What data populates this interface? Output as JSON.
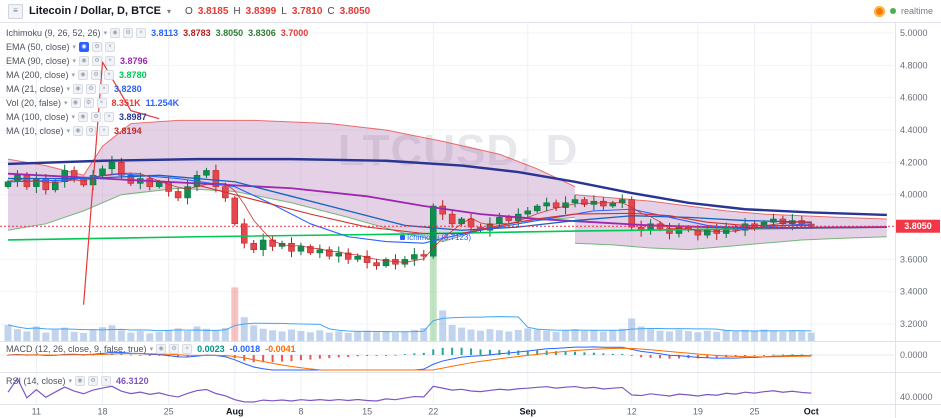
{
  "header": {
    "title": "Litecoin / Dollar, D, BTCE",
    "ohlc": {
      "o_label": "O",
      "o": "3.8185",
      "h_label": "H",
      "h": "3.8399",
      "l_label": "L",
      "l": "3.7810",
      "c_label": "C",
      "c": "3.8050"
    },
    "realtime": "realtime"
  },
  "colors": {
    "ohlc_value": "#e53935",
    "accent_blue": "#2962ff",
    "last_price_tag": "#f23645",
    "cloud_fill": "rgba(160,90,160,0.28)",
    "up_fill": "#0c8f4e",
    "up_border": "#07713c",
    "down_fill": "#e4484e",
    "down_border": "#b71c1c"
  },
  "legend": {
    "rows": [
      {
        "name": "Ichimoku (9, 26, 52, 26)",
        "values": [
          {
            "t": "3.8113",
            "c": "#2962ff"
          },
          {
            "t": "3.8783",
            "c": "#b71c1c"
          },
          {
            "t": "3.8050",
            "c": "#2e7d32"
          },
          {
            "t": "3.8306",
            "c": "#2e7d32"
          },
          {
            "t": "3.7000",
            "c": "#e53935"
          }
        ]
      },
      {
        "name": "EMA (50, close)",
        "highlight_icon": true,
        "values": []
      },
      {
        "name": "EMA (90, close)",
        "values": [
          {
            "t": "3.8796",
            "c": "#9c27b0"
          }
        ]
      },
      {
        "name": "MA (200, close)",
        "values": [
          {
            "t": "3.8780",
            "c": "#00c853"
          }
        ]
      },
      {
        "name": "MA (21, close)",
        "values": [
          {
            "t": "3.8280",
            "c": "#2962ff"
          }
        ]
      },
      {
        "name": "Vol (20, false)",
        "values": [
          {
            "t": "8.351K",
            "c": "#e53935"
          },
          {
            "t": "11.254K",
            "c": "#2962ff"
          }
        ]
      },
      {
        "name": "MA (100, close)",
        "values": [
          {
            "t": "3.8987",
            "c": "#283593"
          }
        ]
      },
      {
        "name": "MA (10, close)",
        "values": [
          {
            "t": "3.8194",
            "c": "#c62828"
          }
        ]
      }
    ]
  },
  "panes": {
    "macd": {
      "name": "MACD (12, 26, close, 9, false, true)",
      "axis_label": "0.0000",
      "values": [
        {
          "t": "0.0023",
          "c": "#009688"
        },
        {
          "t": "-0.0018",
          "c": "#2962ff"
        },
        {
          "t": "-0.0041",
          "c": "#ff6d00"
        }
      ]
    },
    "rsi": {
      "name": "RSI (14, close)",
      "axis_label": "40.0000",
      "values": [
        {
          "t": "46.3120",
          "c": "#7e57c2"
        }
      ]
    }
  },
  "price_axis": {
    "labels": [
      "5.0000",
      "4.8000",
      "4.6000",
      "4.4000",
      "4.2000",
      "4.0000",
      "3.8000",
      "3.6000",
      "3.4000",
      "3.2000"
    ],
    "last_price": "3.8050"
  },
  "time_axis": {
    "labels": [
      {
        "t": "11",
        "i": 3
      },
      {
        "t": "18",
        "i": 10
      },
      {
        "t": "25",
        "i": 17
      },
      {
        "t": "Aug",
        "i": 24,
        "bold": true
      },
      {
        "t": "8",
        "i": 31
      },
      {
        "t": "15",
        "i": 38
      },
      {
        "t": "22",
        "i": 45
      },
      {
        "t": "Sep",
        "i": 55,
        "bold": true
      },
      {
        "t": "12",
        "i": 66
      },
      {
        "t": "19",
        "i": 73
      },
      {
        "t": "25",
        "i": 79
      },
      {
        "t": "Oct",
        "i": 85,
        "bold": true
      }
    ]
  },
  "watermark": "LTCUSD, D",
  "chart_label": "Ichimoku (3.7123)",
  "chart_data": {
    "type": "candlestick",
    "symbol": "LTCUSD",
    "interval": "D",
    "exchange": "BTCE",
    "price_range": [
      3.08,
      5.06
    ],
    "last_price": 3.805,
    "open_first": 4.05,
    "closes": [
      4.08,
      4.12,
      4.05,
      4.1,
      4.03,
      4.08,
      4.15,
      4.1,
      4.06,
      4.12,
      4.16,
      4.2,
      4.12,
      4.07,
      4.1,
      4.05,
      4.08,
      4.02,
      3.98,
      4.05,
      4.12,
      4.15,
      4.05,
      3.98,
      3.82,
      3.7,
      3.66,
      3.72,
      3.68,
      3.7,
      3.65,
      3.68,
      3.64,
      3.66,
      3.62,
      3.64,
      3.6,
      3.62,
      3.58,
      3.56,
      3.6,
      3.57,
      3.6,
      3.63,
      3.62,
      3.93,
      3.88,
      3.82,
      3.85,
      3.8,
      3.78,
      3.82,
      3.86,
      3.84,
      3.88,
      3.9,
      3.93,
      3.95,
      3.92,
      3.95,
      3.97,
      3.94,
      3.96,
      3.93,
      3.95,
      3.97,
      3.8,
      3.78,
      3.82,
      3.79,
      3.76,
      3.8,
      3.78,
      3.75,
      3.78,
      3.76,
      3.8,
      3.78,
      3.82,
      3.8,
      3.83,
      3.85,
      3.82,
      3.84,
      3.8185,
      3.805
    ],
    "volumes": [
      4.2,
      3.1,
      2.5,
      3.8,
      2.2,
      2.9,
      3.5,
      2.4,
      2.1,
      3.0,
      3.6,
      4.1,
      2.8,
      2.2,
      2.6,
      2.0,
      2.4,
      2.9,
      3.3,
      2.6,
      3.8,
      3.2,
      2.7,
      3.4,
      14.0,
      6.2,
      4.1,
      3.2,
      2.8,
      2.5,
      3.0,
      2.6,
      2.3,
      2.8,
      2.2,
      2.5,
      2.1,
      2.4,
      2.7,
      2.3,
      2.6,
      2.2,
      2.5,
      2.9,
      3.4,
      30.0,
      8.0,
      4.2,
      3.5,
      3.0,
      2.7,
      3.1,
      2.8,
      2.5,
      2.9,
      3.3,
      3.0,
      2.7,
      2.4,
      2.8,
      3.1,
      2.6,
      2.9,
      2.5,
      2.8,
      3.2,
      5.9,
      3.8,
      3.1,
      2.7,
      2.5,
      2.9,
      2.6,
      2.3,
      2.7,
      2.4,
      2.8,
      2.5,
      2.9,
      2.6,
      3.0,
      2.7,
      2.4,
      2.8,
      2.5,
      2.2
    ],
    "overlays": {
      "lines": [
        {
          "name": "ma200",
          "color": "#00c853",
          "width": 1.6,
          "points": [
            [
              0,
              3.72
            ],
            [
              20,
              3.74
            ],
            [
              40,
              3.755
            ],
            [
              60,
              3.775
            ],
            [
              80,
              3.79
            ],
            [
              93,
              3.8
            ]
          ]
        },
        {
          "name": "ma100",
          "color": "#283593",
          "width": 2.4,
          "points": [
            [
              0,
              4.19
            ],
            [
              10,
              4.21
            ],
            [
              20,
              4.22
            ],
            [
              30,
              4.22
            ],
            [
              40,
              4.21
            ],
            [
              48,
              4.18
            ],
            [
              54,
              4.14
            ],
            [
              60,
              4.08
            ],
            [
              66,
              4.01
            ],
            [
              72,
              3.95
            ],
            [
              78,
              3.91
            ],
            [
              85,
              3.89
            ],
            [
              93,
              3.875
            ]
          ]
        },
        {
          "name": "ema90",
          "color": "#9c27b0",
          "width": 1.8,
          "points": [
            [
              0,
              4.13
            ],
            [
              10,
              4.1
            ],
            [
              20,
              4.07
            ],
            [
              30,
              4.04
            ],
            [
              38,
              3.99
            ],
            [
              44,
              3.93
            ],
            [
              50,
              3.88
            ],
            [
              56,
              3.85
            ],
            [
              62,
              3.83
            ],
            [
              68,
              3.81
            ],
            [
              74,
              3.8
            ],
            [
              82,
              3.795
            ],
            [
              93,
              3.8
            ]
          ]
        },
        {
          "name": "ema50",
          "color": "#1565c0",
          "width": 1.3,
          "points": [
            [
              0,
              4.1
            ],
            [
              8,
              4.1
            ],
            [
              16,
              4.12
            ],
            [
              24,
              4.08
            ],
            [
              30,
              3.99
            ],
            [
              36,
              3.9
            ],
            [
              42,
              3.81
            ],
            [
              48,
              3.78
            ],
            [
              54,
              3.8
            ],
            [
              60,
              3.84
            ],
            [
              66,
              3.87
            ],
            [
              72,
              3.86
            ],
            [
              78,
              3.84
            ],
            [
              85,
              3.83
            ]
          ]
        },
        {
          "name": "ma21",
          "color": "#2962ff",
          "width": 1.1,
          "points": [
            [
              0,
              4.08
            ],
            [
              6,
              4.09
            ],
            [
              12,
              4.13
            ],
            [
              18,
              4.1
            ],
            [
              24,
              4.05
            ],
            [
              28,
              3.94
            ],
            [
              32,
              3.82
            ],
            [
              36,
              3.74
            ],
            [
              40,
              3.71
            ],
            [
              44,
              3.7
            ],
            [
              46,
              3.73
            ],
            [
              50,
              3.78
            ],
            [
              54,
              3.82
            ],
            [
              58,
              3.86
            ],
            [
              62,
              3.9
            ],
            [
              66,
              3.91
            ],
            [
              70,
              3.86
            ],
            [
              74,
              3.81
            ],
            [
              78,
              3.79
            ],
            [
              82,
              3.81
            ],
            [
              85,
              3.82
            ]
          ]
        },
        {
          "name": "kijun",
          "color": "#d32f2f",
          "width": 1.1,
          "points": [
            [
              20,
              4.06
            ],
            [
              26,
              3.97
            ],
            [
              32,
              3.88
            ],
            [
              38,
              3.8
            ],
            [
              44,
              3.76
            ],
            [
              48,
              3.76
            ],
            [
              52,
              3.81
            ],
            [
              56,
              3.85
            ],
            [
              60,
              3.88
            ],
            [
              66,
              3.885
            ],
            [
              70,
              3.87
            ],
            [
              74,
              3.83
            ],
            [
              78,
              3.81
            ],
            [
              85,
              3.81
            ]
          ]
        },
        {
          "name": "chikou",
          "color": "#e53935",
          "width": 1.2,
          "points": [
            [
              8,
              3.32
            ],
            [
              10,
              4.82
            ],
            [
              13,
              4.52
            ],
            [
              16,
              4.47
            ]
          ]
        }
      ],
      "cloud1": {
        "upper": [
          [
            0,
            4.22
          ],
          [
            4,
            4.18
          ],
          [
            8,
            4.12
          ],
          [
            10,
            4.3
          ],
          [
            13,
            4.44
          ],
          [
            18,
            4.46
          ],
          [
            26,
            4.46
          ],
          [
            34,
            4.44
          ],
          [
            40,
            4.4
          ],
          [
            46,
            4.33
          ],
          [
            52,
            4.25
          ],
          [
            56,
            4.16
          ],
          [
            60,
            4.05
          ]
        ],
        "lower": [
          [
            0,
            3.78
          ],
          [
            4,
            3.82
          ],
          [
            8,
            3.9
          ],
          [
            12,
            4.0
          ],
          [
            18,
            4.04
          ],
          [
            24,
            4.02
          ],
          [
            30,
            3.95
          ],
          [
            36,
            3.86
          ],
          [
            42,
            3.76
          ],
          [
            46,
            3.71
          ],
          [
            50,
            3.78
          ],
          [
            54,
            3.83
          ],
          [
            60,
            3.86
          ]
        ]
      },
      "cloud2": {
        "upper": [
          [
            60,
            4.0
          ],
          [
            64,
            3.98
          ],
          [
            68,
            3.96
          ],
          [
            72,
            3.93
          ],
          [
            76,
            3.9
          ],
          [
            80,
            3.88
          ],
          [
            84,
            3.87
          ],
          [
            88,
            3.86
          ],
          [
            93,
            3.85
          ]
        ],
        "lower": [
          [
            60,
            3.7
          ],
          [
            64,
            3.69
          ],
          [
            68,
            3.67
          ],
          [
            72,
            3.66
          ],
          [
            76,
            3.68
          ],
          [
            80,
            3.7
          ],
          [
            84,
            3.72
          ],
          [
            88,
            3.73
          ],
          [
            93,
            3.74
          ]
        ]
      }
    }
  }
}
